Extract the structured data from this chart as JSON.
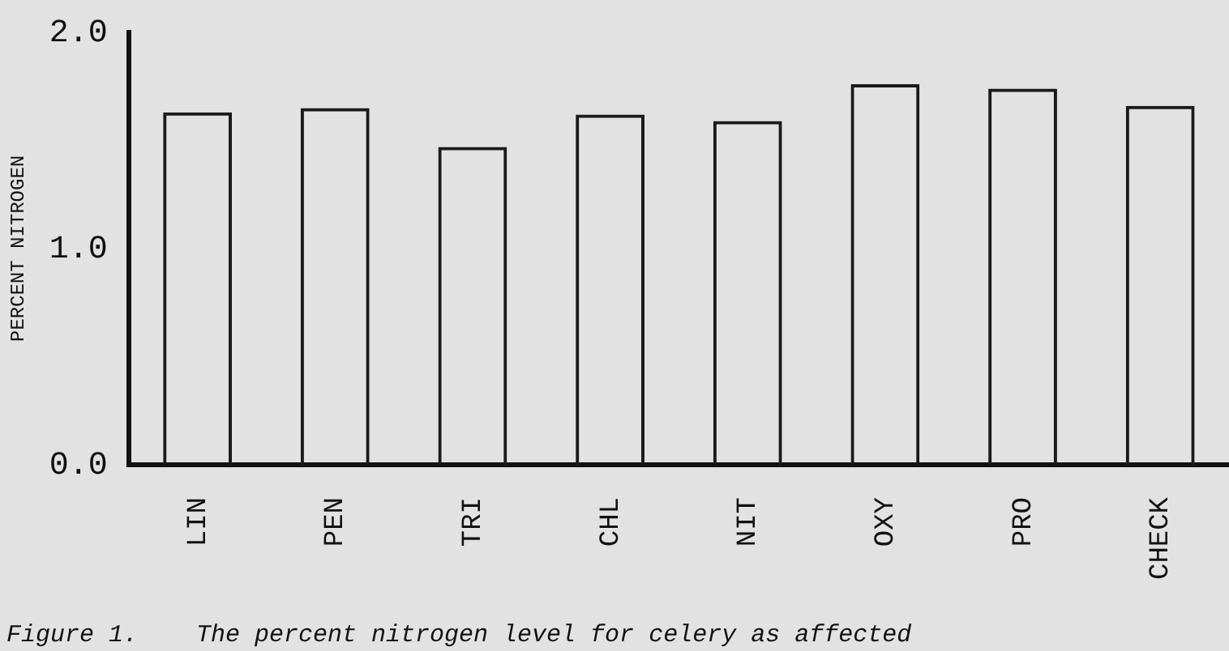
{
  "chart_data": {
    "type": "bar",
    "ylabel": "PERCENT NITROGEN",
    "categories": [
      "LIN",
      "PEN",
      "TRI",
      "CHL",
      "NIT",
      "OXY",
      "PRO",
      "CHECK"
    ],
    "values": [
      1.63,
      1.65,
      1.47,
      1.62,
      1.59,
      1.76,
      1.74,
      1.66
    ],
    "color": "#1a1a1a",
    "ylim": [
      0,
      2
    ],
    "yticks": [
      {
        "value": 0,
        "label": "0.0"
      },
      {
        "value": 1,
        "label": "1.0"
      },
      {
        "value": 2,
        "label": "2.0"
      }
    ],
    "grid": false,
    "legend": false,
    "annotations": [
      "Figure 1.    The percent nitrogen level for celery as affected"
    ]
  }
}
